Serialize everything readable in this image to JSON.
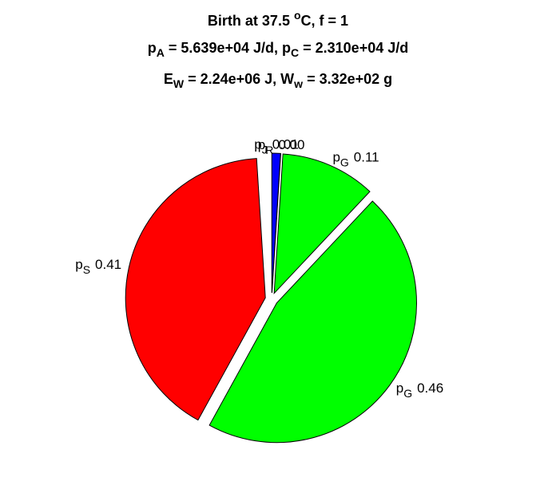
{
  "chart_data": {
    "type": "pie",
    "title_lines": [
      [
        {
          "text": "Birth at 37.5 "
        },
        {
          "text": "o",
          "shift": "sup"
        },
        {
          "text": "C, f = 1"
        }
      ],
      [
        {
          "text": "p"
        },
        {
          "text": "A",
          "shift": "sub"
        },
        {
          "text": " = 5.639e+04 J/d, p"
        },
        {
          "text": "C",
          "shift": "sub"
        },
        {
          "text": " = 2.310e+04 J/d"
        }
      ],
      [
        {
          "text": "E"
        },
        {
          "text": "W",
          "shift": "sub"
        },
        {
          "text": " = 2.24e+06 J, W"
        },
        {
          "text": "w",
          "shift": "sub"
        },
        {
          "text": " = 3.32e+02 g"
        }
      ]
    ],
    "labels": [
      {
        "main": "p",
        "sub": "J"
      },
      {
        "main": "p",
        "sub": "R"
      },
      {
        "main": "p",
        "sub": "G"
      },
      {
        "main": "p",
        "sub": "G"
      },
      {
        "main": "p",
        "sub": "S"
      }
    ],
    "values": [
      0.01,
      0.0,
      0.11,
      0.46,
      0.41
    ],
    "colors": [
      "#0000ff",
      "#ff00ff",
      "#00ff00",
      "#00ff00",
      "#ff0000"
    ]
  }
}
